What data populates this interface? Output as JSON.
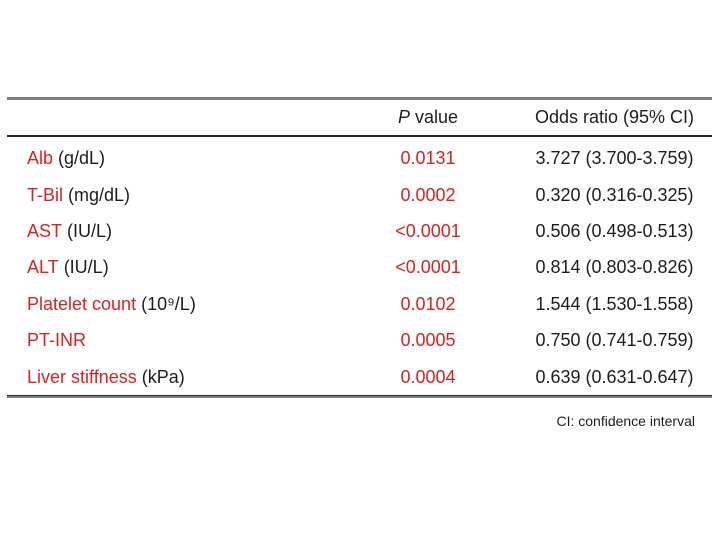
{
  "colors": {
    "red": "#e02020",
    "text": "#1d1d1d",
    "rule_gray": "#7f7f7f",
    "rule_dark": "#2a2a2a"
  },
  "table": {
    "header": {
      "p_italic": "P",
      "p_rest": " value",
      "odds_ratio": "Odds ratio (95% CI)"
    },
    "rows": [
      {
        "label": "Alb",
        "unit": " (g/dL)",
        "p_value": "0.0131",
        "odds_ratio": "3.727 (3.700-3.759)"
      },
      {
        "label": "T-Bil",
        "unit": " (mg/dL)",
        "p_value": "0.0002",
        "odds_ratio": "0.320 (0.316-0.325)"
      },
      {
        "label": "AST",
        "unit": " (IU/L)",
        "p_value": "<0.0001",
        "odds_ratio": "0.506 (0.498-0.513)"
      },
      {
        "label": "ALT",
        "unit": " (IU/L)",
        "p_value": "<0.0001",
        "odds_ratio": "0.814 (0.803-0.826)"
      },
      {
        "label": "Platelet count",
        "unit": " (10⁹/L)",
        "p_value": "0.0102",
        "odds_ratio": "1.544 (1.530-1.558)"
      },
      {
        "label": "PT-INR",
        "unit": "",
        "p_value": "0.0005",
        "odds_ratio": "0.750 (0.741-0.759)"
      },
      {
        "label": "Liver stiffness",
        "unit": " (kPa)",
        "p_value": "0.0004",
        "odds_ratio": "0.639 (0.631-0.647)"
      }
    ],
    "footnote": "CI: confidence interval"
  }
}
